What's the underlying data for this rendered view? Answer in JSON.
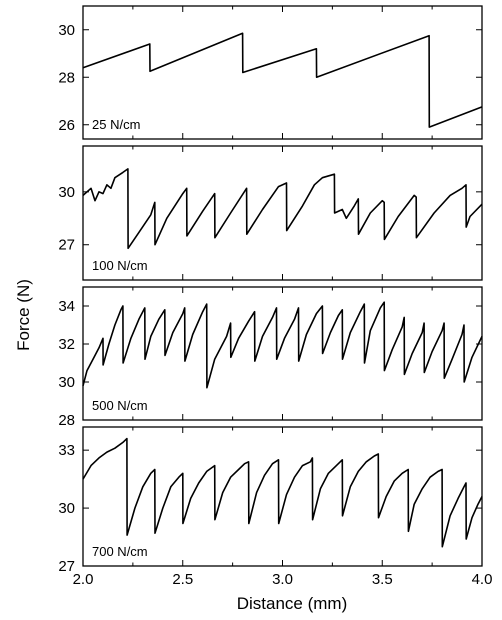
{
  "chart_data": {
    "type": "line",
    "xlabel": "Distance (mm)",
    "ylabel": "Force (N)",
    "xlim": [
      2.0,
      4.0
    ],
    "xticks": [
      "2.0",
      "2.5",
      "3.0",
      "3.5",
      "4.0"
    ],
    "line_color": "#000000",
    "panels": [
      {
        "label": "25 N/cm",
        "ylim": [
          25.4,
          31.0
        ],
        "yticks": [
          26,
          28,
          30
        ],
        "series": [
          {
            "x": [
              2.0,
              2.335,
              2.336,
              2.8,
              2.801,
              3.17,
              3.171,
              3.735,
              3.736,
              4.0
            ],
            "y": [
              28.4,
              29.4,
              28.25,
              29.85,
              28.2,
              29.2,
              28.0,
              29.75,
              25.9,
              26.75
            ]
          }
        ]
      },
      {
        "label": "100 N/cm",
        "ylim": [
          25.0,
          32.6
        ],
        "yticks": [
          27,
          30
        ],
        "series": [
          {
            "x": [
              2.0,
              2.04,
              2.06,
              2.08,
              2.1,
              2.12,
              2.14,
              2.16,
              2.2,
              2.225,
              2.226,
              2.28,
              2.34,
              2.36,
              2.361,
              2.42,
              2.5,
              2.52,
              2.521,
              2.6,
              2.66,
              2.661,
              2.74,
              2.82,
              2.821,
              2.9,
              2.98,
              3.02,
              3.021,
              3.1,
              3.16,
              3.2,
              3.26,
              3.261,
              3.3,
              3.32,
              3.36,
              3.38,
              3.381,
              3.44,
              3.5,
              3.51,
              3.511,
              3.58,
              3.66,
              3.67,
              3.671,
              3.76,
              3.84,
              3.9,
              3.92,
              3.921,
              3.94,
              4.0
            ],
            "y": [
              29.8,
              30.2,
              29.5,
              30.0,
              29.9,
              30.4,
              30.2,
              30.8,
              31.1,
              31.3,
              26.8,
              27.7,
              28.7,
              29.4,
              27.0,
              28.5,
              29.9,
              30.2,
              27.5,
              28.9,
              29.9,
              27.4,
              28.8,
              30.2,
              27.6,
              29.0,
              30.3,
              30.5,
              27.8,
              29.2,
              30.4,
              30.8,
              31.0,
              28.8,
              29.0,
              28.5,
              29.2,
              29.6,
              27.6,
              28.8,
              29.5,
              29.4,
              27.3,
              28.6,
              29.8,
              29.7,
              27.4,
              28.8,
              29.8,
              30.2,
              30.4,
              28.0,
              28.6,
              29.3
            ]
          }
        ]
      },
      {
        "label": "500 N/cm",
        "ylim": [
          28.0,
          35.0
        ],
        "yticks": [
          28,
          30,
          32,
          34
        ],
        "series": [
          {
            "x": [
              2.0,
              2.02,
              2.05,
              2.08,
              2.1,
              2.101,
              2.13,
              2.16,
              2.19,
              2.2,
              2.201,
              2.24,
              2.28,
              2.31,
              2.311,
              2.34,
              2.38,
              2.41,
              2.411,
              2.45,
              2.5,
              2.51,
              2.511,
              2.55,
              2.6,
              2.62,
              2.621,
              2.66,
              2.72,
              2.74,
              2.741,
              2.78,
              2.83,
              2.86,
              2.861,
              2.9,
              2.95,
              2.97,
              2.971,
              3.01,
              3.06,
              3.08,
              3.081,
              3.12,
              3.17,
              3.2,
              3.201,
              3.24,
              3.28,
              3.3,
              3.301,
              3.34,
              3.39,
              3.41,
              3.411,
              3.44,
              3.49,
              3.51,
              3.511,
              3.55,
              3.6,
              3.61,
              3.611,
              3.65,
              3.7,
              3.71,
              3.711,
              3.75,
              3.8,
              3.81,
              3.811,
              3.85,
              3.9,
              3.91,
              3.911,
              3.95,
              4.0
            ],
            "y": [
              29.8,
              30.6,
              31.2,
              31.8,
              32.3,
              30.9,
              32.0,
              33.0,
              33.8,
              34.0,
              31.0,
              32.3,
              33.3,
              33.9,
              31.2,
              32.4,
              33.3,
              33.8,
              31.4,
              32.6,
              33.6,
              33.9,
              31.1,
              32.5,
              33.7,
              34.1,
              29.7,
              31.2,
              32.4,
              33.1,
              31.3,
              32.3,
              33.2,
              33.7,
              31.1,
              32.4,
              33.4,
              33.9,
              31.2,
              32.3,
              33.3,
              33.9,
              31.1,
              32.5,
              33.6,
              34.0,
              31.5,
              32.6,
              33.5,
              33.8,
              31.2,
              32.6,
              33.7,
              34.1,
              31.0,
              32.7,
              33.9,
              34.2,
              30.6,
              31.7,
              32.9,
              33.4,
              30.4,
              31.5,
              32.6,
              33.1,
              30.5,
              31.6,
              32.7,
              33.1,
              30.2,
              31.2,
              32.5,
              33.0,
              30.0,
              31.3,
              32.4
            ]
          }
        ]
      },
      {
        "label": "700 N/cm",
        "ylim": [
          27.0,
          34.2
        ],
        "yticks": [
          27,
          30,
          33
        ],
        "series": [
          {
            "x": [
              2.0,
              2.04,
              2.08,
              2.12,
              2.16,
              2.2,
              2.22,
              2.221,
              2.26,
              2.3,
              2.34,
              2.36,
              2.361,
              2.4,
              2.44,
              2.48,
              2.5,
              2.501,
              2.54,
              2.58,
              2.62,
              2.66,
              2.661,
              2.7,
              2.74,
              2.78,
              2.81,
              2.83,
              2.831,
              2.87,
              2.91,
              2.95,
              2.98,
              2.981,
              3.02,
              3.06,
              3.1,
              3.14,
              3.15,
              3.151,
              3.19,
              3.23,
              3.27,
              3.3,
              3.301,
              3.34,
              3.38,
              3.42,
              3.46,
              3.48,
              3.481,
              3.52,
              3.56,
              3.6,
              3.63,
              3.631,
              3.66,
              3.7,
              3.74,
              3.78,
              3.8,
              3.801,
              3.84,
              3.88,
              3.91,
              3.92,
              3.921,
              3.95,
              3.98,
              4.0
            ],
            "y": [
              31.5,
              32.2,
              32.6,
              32.9,
              33.1,
              33.4,
              33.6,
              28.6,
              30.0,
              31.1,
              31.8,
              32.0,
              28.7,
              30.0,
              31.1,
              31.6,
              31.8,
              29.2,
              30.5,
              31.3,
              31.9,
              32.2,
              29.4,
              30.8,
              31.6,
              32.0,
              32.3,
              32.4,
              29.2,
              30.8,
              31.7,
              32.3,
              32.5,
              29.2,
              30.7,
              31.6,
              32.2,
              32.4,
              32.6,
              29.4,
              31.0,
              31.8,
              32.2,
              32.5,
              29.6,
              31.1,
              31.9,
              32.4,
              32.7,
              32.8,
              29.5,
              30.6,
              31.4,
              31.8,
              32.0,
              28.8,
              30.2,
              31.0,
              31.6,
              31.9,
              32.0,
              28.0,
              29.6,
              30.5,
              31.1,
              31.3,
              28.4,
              29.5,
              30.2,
              30.6
            ]
          }
        ]
      }
    ]
  }
}
